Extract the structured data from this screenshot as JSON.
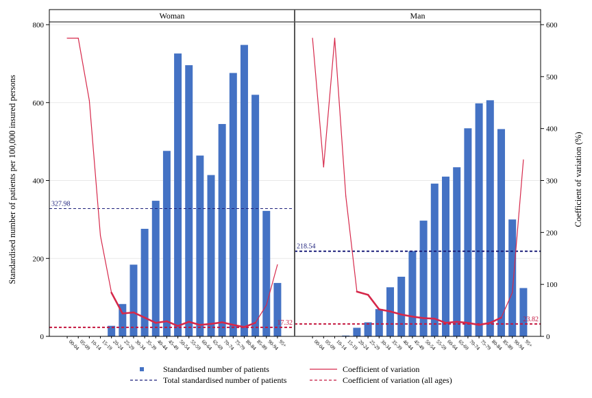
{
  "chart_data": {
    "type": "bar",
    "panels": [
      {
        "title": "Woman",
        "categories": [
          "00-04",
          "05-09",
          "10-14",
          "15-19",
          "20-24",
          "25-29",
          "30-34",
          "35-39",
          "40-44",
          "45-49",
          "50-54",
          "55-59",
          "60-64",
          "65-69",
          "70-74",
          "75-79",
          "80-84",
          "85-89",
          "90-94",
          "95+"
        ],
        "series": [
          {
            "name": "Standardised number of patients",
            "type": "bar",
            "axis": "left",
            "values": [
              0,
              0,
              0,
              0,
              27,
              83,
              184,
              276,
              348,
              476,
              726,
              696,
              464,
              414,
              545,
              676,
              748,
              620,
              322,
              137
            ]
          },
          {
            "name": "Coefficient of variation",
            "type": "line",
            "axis": "right",
            "values": [
              574,
              574,
              454,
              194,
              84,
              44,
              46,
              36,
              26,
              29,
              20,
              28,
              22,
              24,
              27,
              22,
              18,
              26,
              60,
              138
            ]
          }
        ],
        "reference_lines": [
          {
            "name": "Total standardised number of patients",
            "axis": "left",
            "value": 327.98,
            "label": "327.98"
          },
          {
            "name": "Coefficient of variation (all ages)",
            "axis": "right",
            "value": 17.32,
            "label": "17.32"
          }
        ]
      },
      {
        "title": "Man",
        "categories": [
          "00-04",
          "05-09",
          "10-14",
          "15-19",
          "20-24",
          "25-29",
          "30-34",
          "35-39",
          "40-44",
          "45-49",
          "50-54",
          "55-59",
          "60-64",
          "65-69",
          "70-74",
          "75-79",
          "80-84",
          "85-89",
          "90-94",
          "95+"
        ],
        "series": [
          {
            "name": "Standardised number of patients",
            "type": "bar",
            "axis": "left",
            "values": [
              0,
              0,
              0,
              2,
              22,
              36,
              70,
              126,
              153,
              219,
              297,
              392,
              410,
              434,
              534,
              598,
              606,
              532,
              300,
              124
            ]
          },
          {
            "name": "Coefficient of variation",
            "type": "line",
            "axis": "right",
            "values": [
              574,
              326,
              574,
              270,
              86,
              80,
              52,
              48,
              42,
              38,
              35,
              34,
              26,
              28,
              26,
              22,
              26,
              36,
              84,
              340
            ]
          }
        ],
        "reference_lines": [
          {
            "name": "Total standardised number of patients",
            "axis": "left",
            "value": 218.54,
            "label": "218.54"
          },
          {
            "name": "Coefficient of variation (all ages)",
            "axis": "right",
            "value": 23.82,
            "label": "23.82"
          }
        ]
      }
    ],
    "ylabel": "Standardised number of patients per 100,000 insured persons",
    "y2label": "Coefficient of variation (%)",
    "ylim": [
      0,
      800
    ],
    "yticks": [
      0,
      200,
      400,
      600,
      800
    ],
    "y2lim": [
      0,
      600
    ],
    "y2ticks": [
      0,
      100,
      200,
      300,
      400,
      500,
      600
    ],
    "grid": true,
    "legend": {
      "placement": "bottom",
      "items": [
        {
          "label": "Standardised number of patients",
          "kind": "marker",
          "color": "#4472c4"
        },
        {
          "label": "Coefficient of variation",
          "kind": "line",
          "color": "#d6284a"
        },
        {
          "label": "Total standardised number of patients",
          "kind": "dash",
          "color": "#1b1f7a"
        },
        {
          "label": "Coefficient of variation (all ages)",
          "kind": "dash",
          "color": "#c4163e"
        }
      ]
    },
    "colors": {
      "bar": "#4472c4",
      "cv_line": "#d6284a",
      "total_line": "#1b1f7a",
      "cv_all_line": "#c4163e"
    }
  }
}
